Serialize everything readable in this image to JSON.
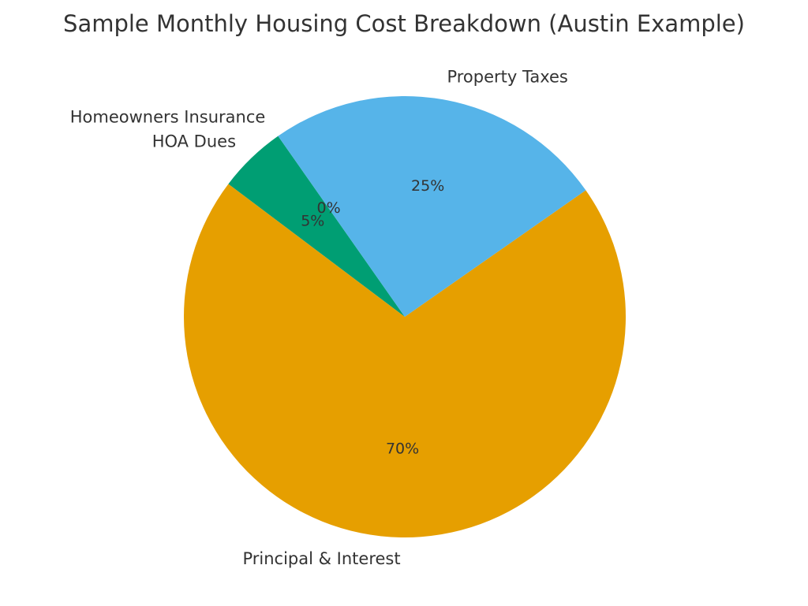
{
  "chart_data": {
    "type": "pie",
    "title": "Sample Monthly Housing Cost Breakdown (Austin Example)",
    "start_angle_deg": 125,
    "counterclockwise": true,
    "slices": [
      {
        "label": "Homeowners Insurance",
        "value": 0,
        "pct_label": "0%",
        "color": "#56B4E9"
      },
      {
        "label": "HOA Dues",
        "value": 5,
        "pct_label": "5%",
        "color": "#009E73"
      },
      {
        "label": "Principal & Interest",
        "value": 70,
        "pct_label": "70%",
        "color": "#E69F00"
      },
      {
        "label": "Property Taxes",
        "value": 25,
        "pct_label": "25%",
        "color": "#56B4E9"
      }
    ]
  }
}
